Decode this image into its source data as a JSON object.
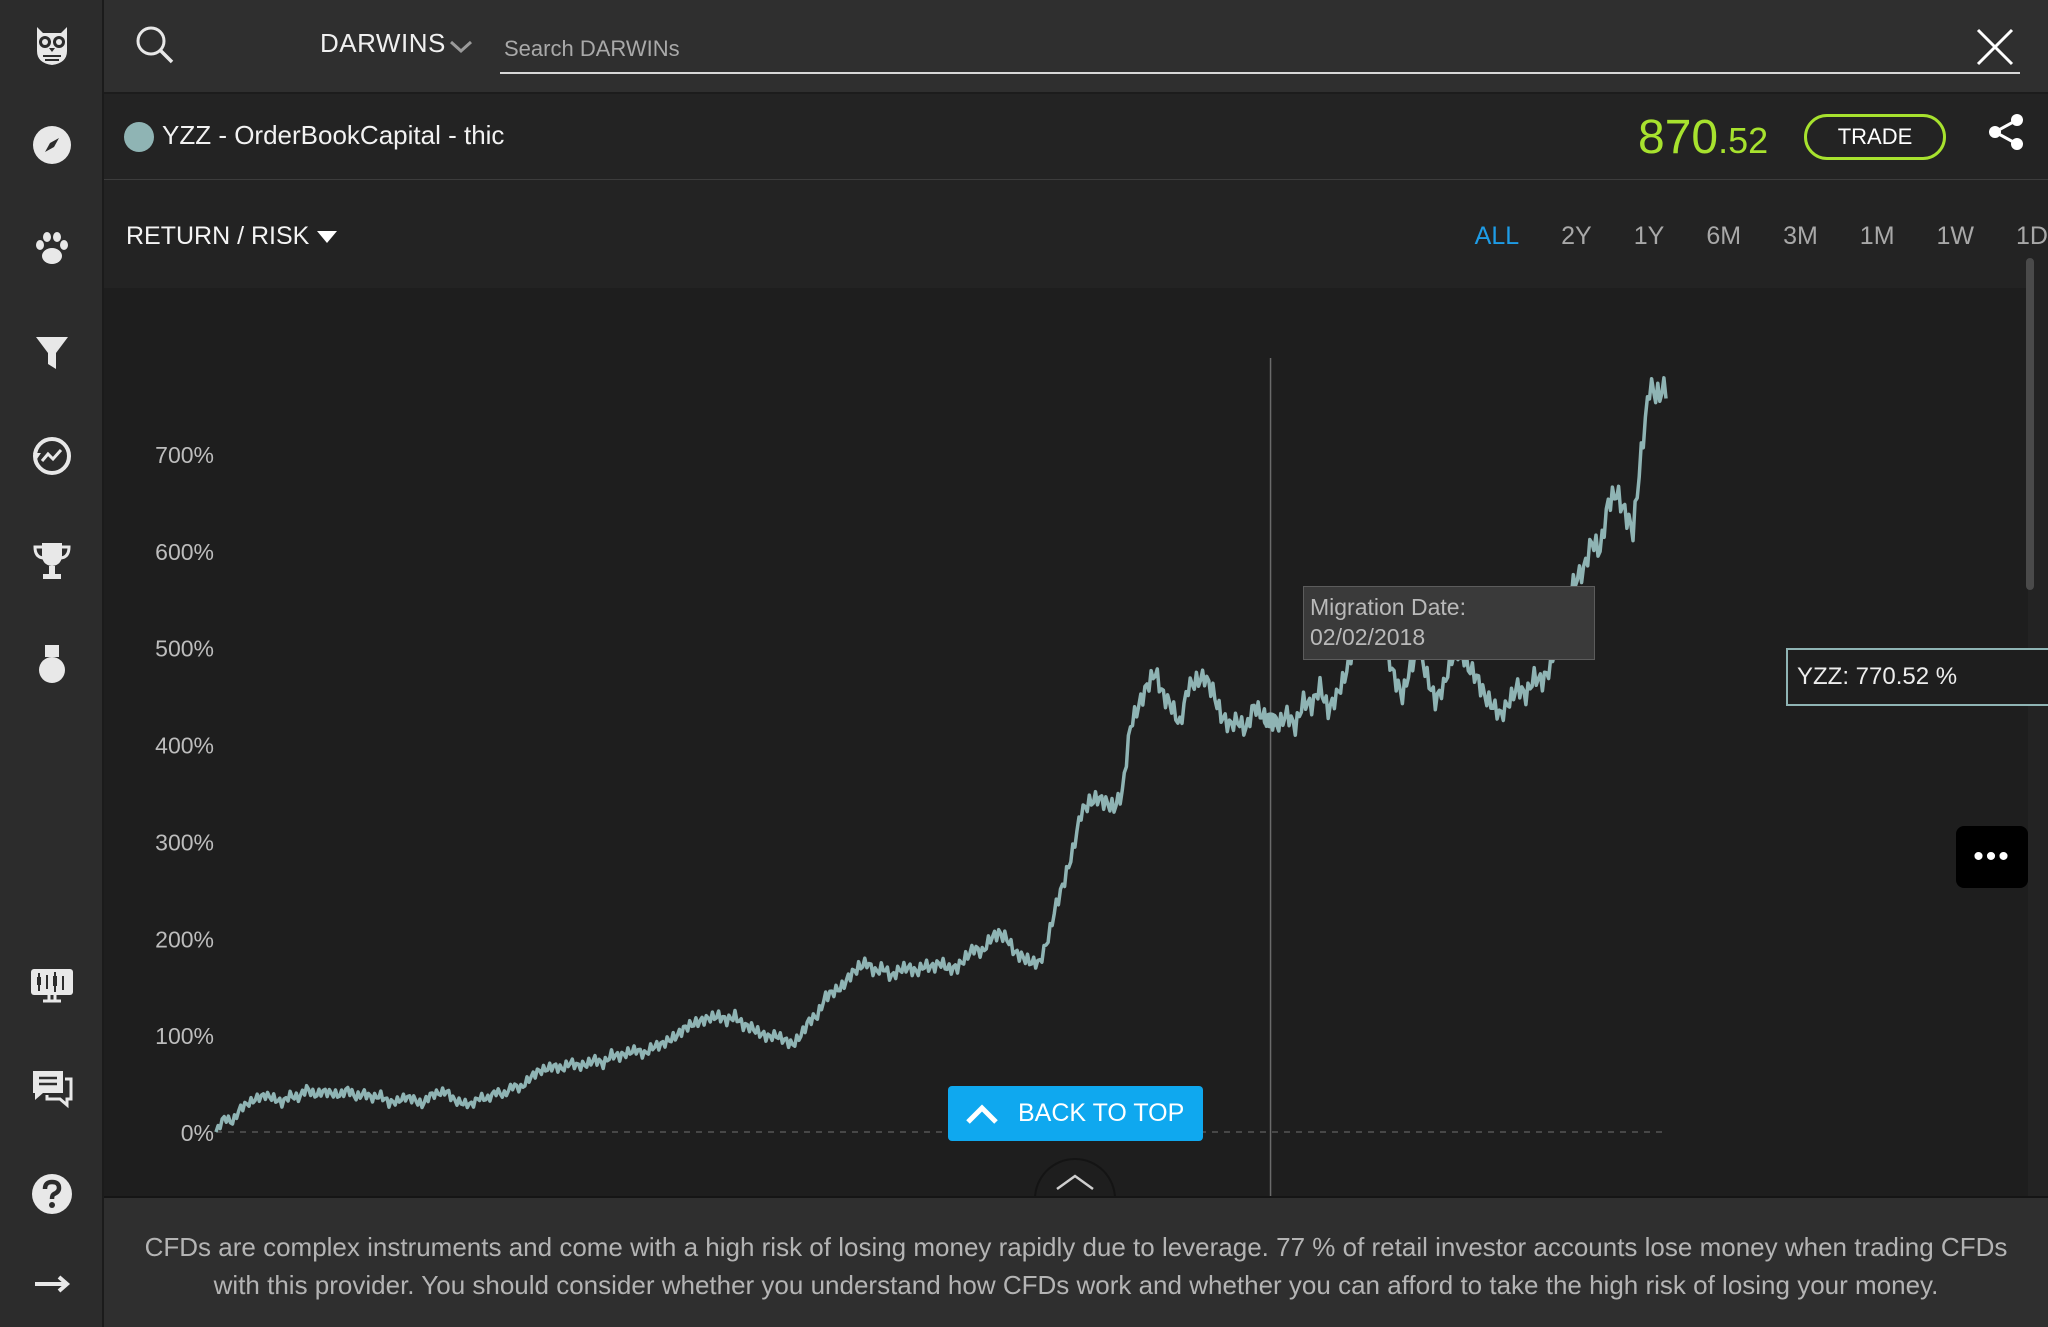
{
  "topbar": {
    "category_label": "DARWINS",
    "search_placeholder": "Search DARWINs"
  },
  "header": {
    "darwin_name": "YZZ - OrderBookCapital - thic",
    "quote_int": "870",
    "quote_dec": ".52",
    "trade_label": "TRADE"
  },
  "subheader": {
    "mode_label": "RETURN / RISK",
    "ranges": [
      "ALL",
      "2Y",
      "1Y",
      "6M",
      "3M",
      "1M",
      "1W",
      "1D"
    ],
    "active_range": "ALL"
  },
  "chart": {
    "migration_label": "Migration Date:",
    "migration_date": "02/02/2018",
    "tooltip": "YZZ: 770.52 %",
    "more_label": "•••",
    "back_to_top": "BACK TO TOP"
  },
  "disclaimer": "CFDs are complex instruments and come with a high risk of losing money rapidly due to leverage. 77 % of retail investor accounts lose money when trading CFDs with this provider. You should consider whether you understand how CFDs work and whether you can afford to take the high risk of losing your money.",
  "colors": {
    "series": "#8fb4b4",
    "quote": "#a7e22e",
    "active_tab": "#1e9ce6",
    "back_to_top": "#0fa8ef"
  },
  "chart_data": {
    "type": "line",
    "title": "",
    "xlabel": "",
    "ylabel": "",
    "ylim": [
      -10,
      790
    ],
    "y_ticks": [
      "0%",
      "100%",
      "200%",
      "300%",
      "400%",
      "500%",
      "600%",
      "700%"
    ],
    "y_tick_values": [
      0,
      100,
      200,
      300,
      400,
      500,
      600,
      700
    ],
    "series": [
      {
        "values": [
          0,
          15,
          10,
          25,
          30,
          35,
          38,
          35,
          30,
          38,
          35,
          45,
          38,
          42,
          40,
          38,
          44,
          36,
          40,
          35,
          38,
          30,
          32,
          36,
          34,
          28,
          38,
          40,
          42,
          32,
          30,
          28,
          36,
          34,
          42,
          38,
          48,
          45,
          55,
          62,
          65,
          68,
          65,
          72,
          68,
          70,
          75,
          70,
          80,
          78,
          82,
          85,
          80,
          88,
          90,
          95,
          100,
          108,
          112,
          115,
          118,
          120,
          115,
          120,
          110,
          108,
          102,
          98,
          100,
          95,
          90,
          100,
          115,
          120,
          140,
          145,
          150,
          162,
          170,
          175,
          165,
          170,
          160,
          168,
          170,
          165,
          172,
          170,
          175,
          168,
          170,
          180,
          190,
          185,
          200,
          205,
          200,
          185,
          180,
          175,
          175,
          200,
          235,
          260,
          290,
          330,
          340,
          345,
          340,
          335,
          350,
          420,
          440,
          460,
          475,
          450,
          440,
          420,
          460,
          465,
          470,
          455,
          430,
          420,
          425,
          415,
          440,
          430,
          425,
          420,
          432,
          418,
          445,
          440,
          460,
          435,
          450,
          470,
          500,
          520,
          555,
          520,
          500,
          470,
          450,
          480,
          500,
          470,
          445,
          460,
          490,
          500,
          480,
          470,
          450,
          440,
          430,
          445,
          460,
          450,
          470,
          465,
          480,
          520,
          550,
          570,
          580,
          610,
          600,
          650,
          660,
          640,
          620,
          700,
          770,
          760,
          770
        ]
      }
    ],
    "migration_index": 128,
    "last_value": 770.52
  }
}
